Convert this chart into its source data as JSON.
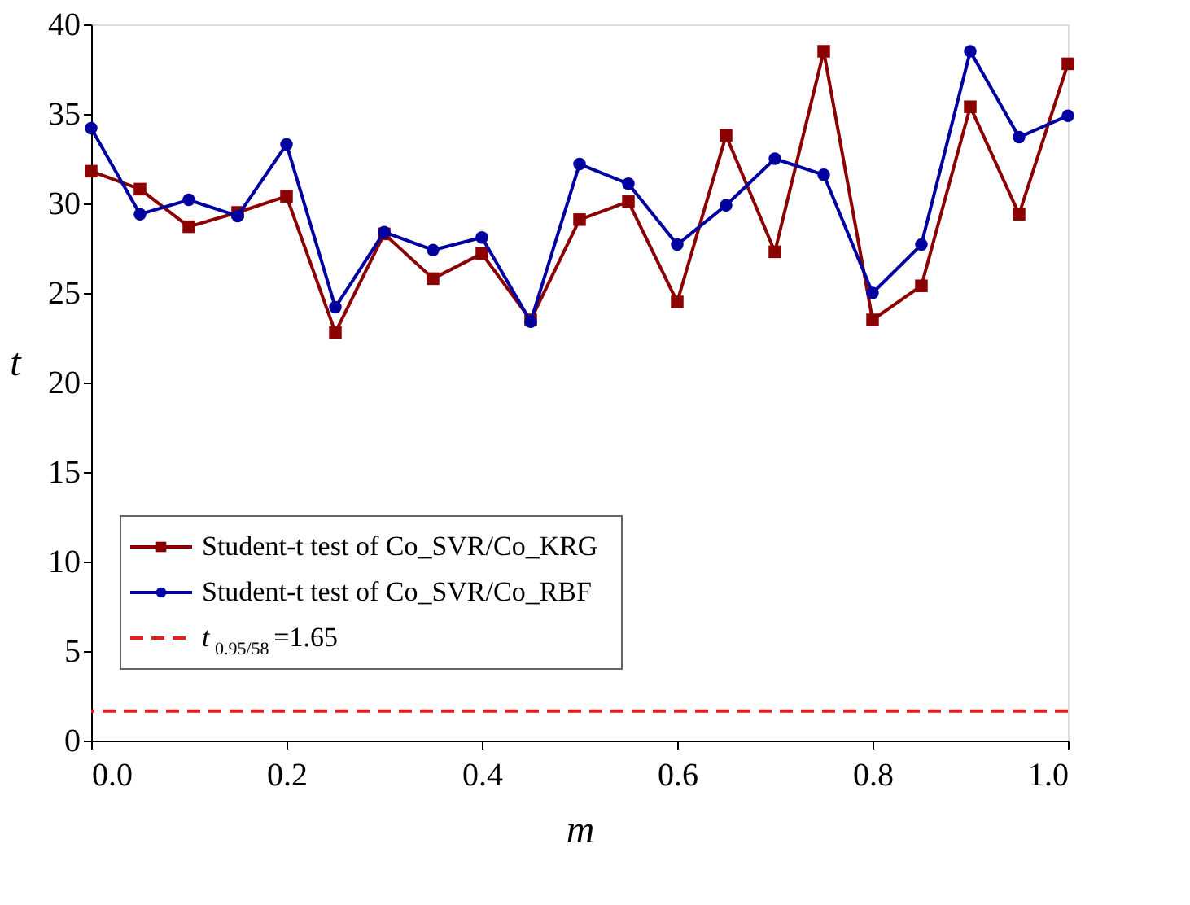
{
  "chart_data": {
    "type": "line",
    "xlabel": "m",
    "ylabel": "t",
    "x": [
      0,
      0.05,
      0.1,
      0.15,
      0.2,
      0.25,
      0.3,
      0.35,
      0.4,
      0.45,
      0.5,
      0.55,
      0.6,
      0.65,
      0.7,
      0.75,
      0.8,
      0.85,
      0.9,
      0.95,
      1.0
    ],
    "series": [
      {
        "name": "Student-t test of Co_SVR/Co_KRG",
        "color": "#8b0000",
        "marker": "square",
        "values": [
          31.8,
          30.8,
          28.7,
          29.5,
          30.4,
          22.8,
          28.3,
          25.8,
          27.2,
          23.5,
          29.1,
          30.1,
          24.5,
          33.8,
          27.3,
          38.5,
          23.5,
          25.4,
          35.4,
          29.4,
          37.8
        ]
      },
      {
        "name": "Student-t test of Co_SVR/Co_RBF",
        "color": "#0000a0",
        "marker": "circle",
        "values": [
          34.2,
          29.4,
          30.2,
          29.3,
          33.3,
          24.2,
          28.4,
          27.4,
          28.1,
          23.4,
          32.2,
          31.1,
          27.7,
          29.9,
          32.5,
          31.6,
          25.0,
          27.7,
          38.5,
          33.7,
          34.9
        ]
      }
    ],
    "ref_lines": [
      {
        "axis": "y",
        "value": 1.65,
        "label": "t$_{0.95/58}$=1.65",
        "color": "#e02020",
        "line_style": "dashed"
      }
    ],
    "xlim": [
      0,
      1.0
    ],
    "xticks": [
      {
        "value": 0,
        "label": "0.0"
      },
      0.2,
      0.4,
      0.6,
      0.8,
      {
        "value": 1.0,
        "label": "1.0"
      }
    ],
    "ylim": [
      0,
      40
    ],
    "yticks": [
      0,
      5,
      10,
      15,
      20,
      25,
      30,
      35,
      40
    ],
    "grid": false,
    "legend": "bottom left",
    "line_style": "solid"
  }
}
